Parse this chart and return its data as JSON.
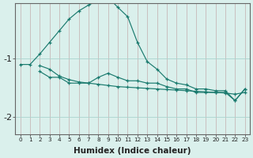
{
  "xlabel": "Humidex (Indice chaleur)",
  "bg_color": "#daf0ec",
  "grid_color": "#aad4ce",
  "line_color": "#1a7a6e",
  "ylim": [
    -2.3,
    -0.05
  ],
  "yticks": [
    -2.0,
    -1.0
  ],
  "xlim": [
    -0.5,
    23.5
  ],
  "xticks": [
    0,
    1,
    2,
    3,
    4,
    5,
    6,
    7,
    8,
    9,
    10,
    11,
    12,
    13,
    14,
    15,
    16,
    17,
    18,
    19,
    20,
    21,
    22,
    23
  ],
  "s1x": [
    0,
    1,
    2,
    3,
    4,
    5,
    6,
    7,
    8,
    9,
    10,
    11,
    12,
    13,
    14,
    15,
    16,
    17,
    18,
    19,
    20,
    21,
    22,
    23
  ],
  "s1y": [
    -1.1,
    -1.1,
    -0.92,
    -0.72,
    -0.52,
    -0.32,
    -0.18,
    -0.08,
    0.0,
    0.05,
    -0.12,
    -0.28,
    -0.72,
    -1.05,
    -1.18,
    -1.35,
    -1.42,
    -1.45,
    -1.52,
    -1.52,
    -1.55,
    -1.55,
    -1.72,
    -1.52
  ],
  "s2x": [
    2,
    3,
    4,
    5,
    6,
    7,
    8,
    9,
    10,
    11,
    12,
    13,
    14,
    15,
    16,
    17,
    18,
    19,
    20,
    21,
    22,
    23
  ],
  "s2y": [
    -1.22,
    -1.32,
    -1.32,
    -1.42,
    -1.42,
    -1.42,
    -1.32,
    -1.25,
    -1.32,
    -1.38,
    -1.38,
    -1.42,
    -1.42,
    -1.48,
    -1.52,
    -1.52,
    -1.58,
    -1.58,
    -1.58,
    -1.58,
    -1.72,
    -1.52
  ],
  "s3x": [
    2,
    3,
    4,
    5,
    6,
    7,
    8,
    9,
    10,
    11,
    12,
    13,
    14,
    15,
    16,
    17,
    18,
    19,
    20,
    21,
    22,
    23
  ],
  "s3y": [
    -1.12,
    -1.18,
    -1.3,
    -1.36,
    -1.4,
    -1.42,
    -1.44,
    -1.46,
    -1.48,
    -1.49,
    -1.5,
    -1.51,
    -1.52,
    -1.53,
    -1.54,
    -1.55,
    -1.56,
    -1.57,
    -1.58,
    -1.59,
    -1.61,
    -1.58
  ]
}
